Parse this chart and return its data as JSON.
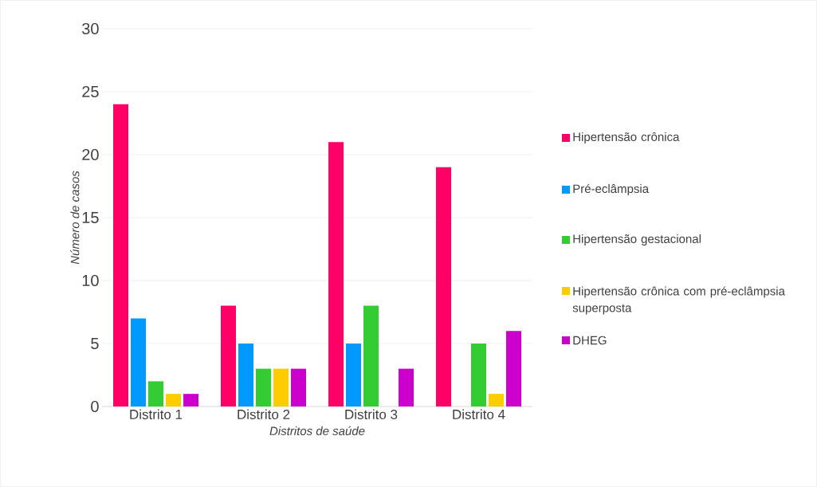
{
  "chart_data": {
    "type": "bar",
    "xlabel": "Distritos de saúde",
    "ylabel": "Número de casos",
    "categories": [
      "Distrito 1",
      "Distrito 2",
      "Distrito 3",
      "Distrito 4"
    ],
    "series": [
      {
        "name": "Hipertensão crônica",
        "color": "#ff0066",
        "values": [
          24,
          8,
          21,
          19
        ]
      },
      {
        "name": "Pré-eclâmpsia",
        "color": "#0099ff",
        "values": [
          7,
          5,
          5,
          null
        ]
      },
      {
        "name": "Hipertensão gestacional",
        "color": "#33cc33",
        "values": [
          2,
          3,
          8,
          5
        ]
      },
      {
        "name": "Hipertensão crônica com pré-eclâmpsia superposta",
        "color": "#ffcc00",
        "values": [
          1,
          3,
          null,
          1
        ]
      },
      {
        "name": "DHEG",
        "color": "#cc00cc",
        "values": [
          1,
          3,
          3,
          6
        ]
      }
    ],
    "ylim": [
      0,
      30
    ],
    "yticks": [
      0,
      5,
      10,
      15,
      20,
      25,
      30
    ],
    "grid": "y",
    "legend": "right"
  }
}
